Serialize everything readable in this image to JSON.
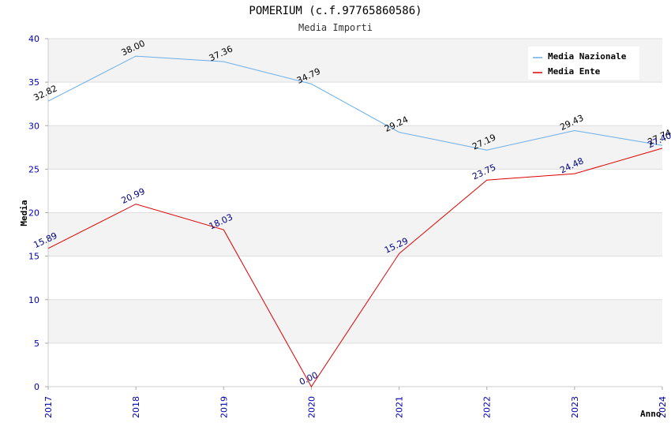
{
  "chart_data": {
    "type": "line",
    "title": "POMERIUM (c.f.97765860586)",
    "subtitle": "Media Importi",
    "xlabel": "Anno",
    "ylabel": "Media",
    "ylim": [
      0,
      40
    ],
    "yticks": [
      "0",
      "5",
      "10",
      "15",
      "20",
      "25",
      "30",
      "35",
      "40"
    ],
    "categories": [
      "2017",
      "2018",
      "2019",
      "2020",
      "2021",
      "2022",
      "2023",
      "2024"
    ],
    "grid": true,
    "legend_position": "top-right",
    "series": [
      {
        "name": "Media Nazionale",
        "color": "#6aaee8",
        "label_color": "#000000",
        "values": [
          32.82,
          38.0,
          37.36,
          34.79,
          29.24,
          27.19,
          29.43,
          27.74
        ],
        "labels": [
          "32.82",
          "38.00",
          "37.36",
          "34.79",
          "29.24",
          "27.19",
          "29.43",
          "27.74"
        ]
      },
      {
        "name": "Media Ente",
        "color": "#dd0000",
        "label_color": "#000080",
        "values": [
          15.89,
          20.99,
          18.03,
          0.0,
          15.29,
          23.75,
          24.48,
          27.4
        ],
        "labels": [
          "15.89",
          "20.99",
          "18.03",
          "0.00",
          "15.29",
          "23.75",
          "24.48",
          "27.40"
        ]
      }
    ]
  }
}
